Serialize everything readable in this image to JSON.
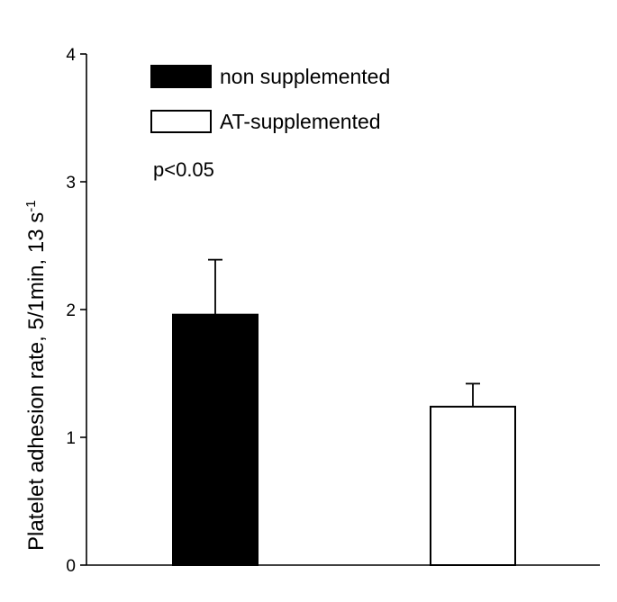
{
  "chart_data": {
    "type": "bar",
    "categories": [
      "non supplemented",
      "AT-supplemented"
    ],
    "series": [
      {
        "name": "non supplemented",
        "value": 1.96,
        "error": 0.43,
        "fill": "#000000"
      },
      {
        "name": "AT-supplemented",
        "value": 1.24,
        "error": 0.18,
        "fill": "#ffffff"
      }
    ],
    "ylabel": "Platelet adhesion rate, 5/1min, 13 s",
    "ylabel_sup": "-1",
    "ylim": [
      0,
      4
    ],
    "yticks": [
      "0",
      "1",
      "2",
      "3",
      "4"
    ],
    "annotation": "p<0.05",
    "grid": false,
    "legend_position": "top-left"
  }
}
